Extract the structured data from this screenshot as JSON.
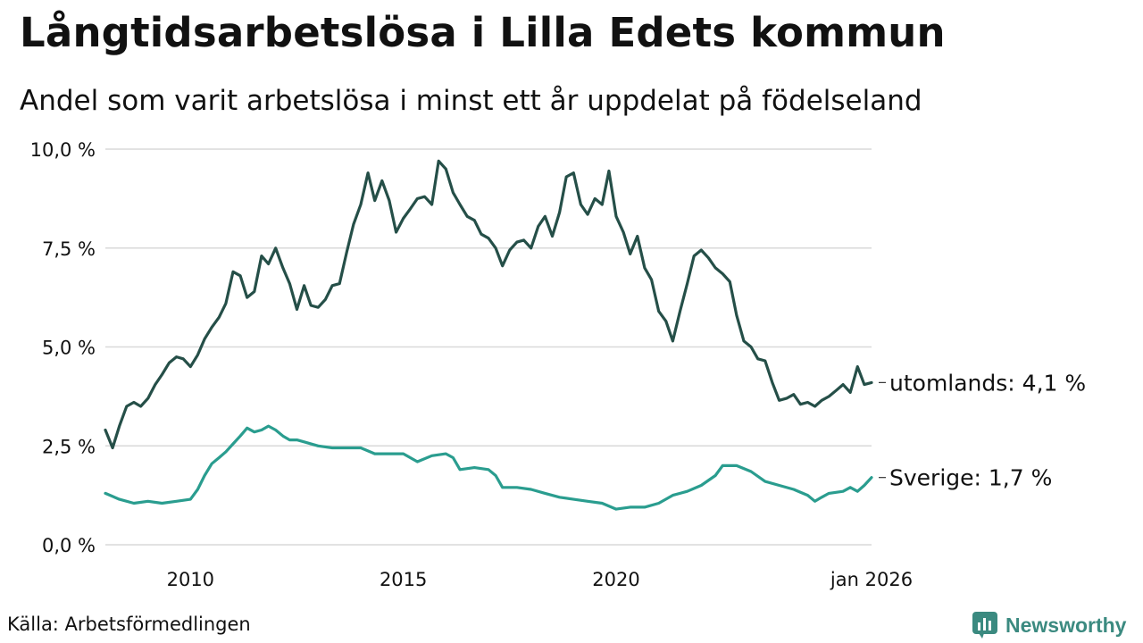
{
  "header": {
    "title": "Långtidsarbetslösa i Lilla Edets kommun",
    "subtitle": "Andel som varit arbetslösa i minst ett år uppdelat på födelseland"
  },
  "footer": {
    "source": "Källa: Arbetsförmedlingen",
    "brand": "Newsworthy"
  },
  "colors": {
    "utomlands": "#254f48",
    "sverige": "#2a9d8f",
    "grid": "#d9d9d9",
    "brand": "#3b8a80"
  },
  "chart_data": {
    "type": "line",
    "title": "Långtidsarbetslösa i Lilla Edets kommun",
    "subtitle": "Andel som varit arbetslösa i minst ett år uppdelat på födelseland",
    "xlabel": "",
    "ylabel": "",
    "x_range": [
      2008.0,
      2026.0
    ],
    "ylim": [
      0,
      10
    ],
    "grid": true,
    "y_ticks": [
      {
        "value": 0,
        "label": "0,0 %"
      },
      {
        "value": 2.5,
        "label": "2,5 %"
      },
      {
        "value": 5,
        "label": "5,0 %"
      },
      {
        "value": 7.5,
        "label": "7,5 %"
      },
      {
        "value": 10,
        "label": "10,0 %"
      }
    ],
    "x_ticks": [
      {
        "value": 2010,
        "label": "2010"
      },
      {
        "value": 2015,
        "label": "2015"
      },
      {
        "value": 2020,
        "label": "2020"
      },
      {
        "value": 2026,
        "label": "jan 2026"
      }
    ],
    "series": [
      {
        "name": "utomlands",
        "end_label": "utomlands: 4,1 %",
        "color": "#254f48",
        "points": [
          [
            2008.0,
            2.9
          ],
          [
            2008.17,
            2.45
          ],
          [
            2008.33,
            3.0
          ],
          [
            2008.5,
            3.5
          ],
          [
            2008.67,
            3.6
          ],
          [
            2008.83,
            3.5
          ],
          [
            2009.0,
            3.7
          ],
          [
            2009.17,
            4.05
          ],
          [
            2009.33,
            4.3
          ],
          [
            2009.5,
            4.6
          ],
          [
            2009.67,
            4.75
          ],
          [
            2009.83,
            4.7
          ],
          [
            2010.0,
            4.5
          ],
          [
            2010.17,
            4.8
          ],
          [
            2010.33,
            5.2
          ],
          [
            2010.5,
            5.5
          ],
          [
            2010.67,
            5.75
          ],
          [
            2010.83,
            6.1
          ],
          [
            2011.0,
            6.9
          ],
          [
            2011.17,
            6.8
          ],
          [
            2011.33,
            6.25
          ],
          [
            2011.5,
            6.4
          ],
          [
            2011.67,
            7.3
          ],
          [
            2011.83,
            7.1
          ],
          [
            2012.0,
            7.5
          ],
          [
            2012.17,
            7.0
          ],
          [
            2012.33,
            6.6
          ],
          [
            2012.5,
            5.95
          ],
          [
            2012.67,
            6.55
          ],
          [
            2012.83,
            6.05
          ],
          [
            2013.0,
            6.0
          ],
          [
            2013.17,
            6.2
          ],
          [
            2013.33,
            6.55
          ],
          [
            2013.5,
            6.6
          ],
          [
            2013.67,
            7.4
          ],
          [
            2013.83,
            8.1
          ],
          [
            2014.0,
            8.6
          ],
          [
            2014.17,
            9.4
          ],
          [
            2014.33,
            8.7
          ],
          [
            2014.5,
            9.2
          ],
          [
            2014.67,
            8.7
          ],
          [
            2014.83,
            7.9
          ],
          [
            2015.0,
            8.25
          ],
          [
            2015.17,
            8.5
          ],
          [
            2015.33,
            8.75
          ],
          [
            2015.5,
            8.8
          ],
          [
            2015.67,
            8.6
          ],
          [
            2015.83,
            9.7
          ],
          [
            2016.0,
            9.5
          ],
          [
            2016.17,
            8.9
          ],
          [
            2016.33,
            8.6
          ],
          [
            2016.5,
            8.3
          ],
          [
            2016.67,
            8.2
          ],
          [
            2016.83,
            7.85
          ],
          [
            2017.0,
            7.75
          ],
          [
            2017.17,
            7.5
          ],
          [
            2017.33,
            7.05
          ],
          [
            2017.5,
            7.45
          ],
          [
            2017.67,
            7.65
          ],
          [
            2017.83,
            7.7
          ],
          [
            2018.0,
            7.5
          ],
          [
            2018.17,
            8.05
          ],
          [
            2018.33,
            8.3
          ],
          [
            2018.5,
            7.8
          ],
          [
            2018.67,
            8.4
          ],
          [
            2018.83,
            9.3
          ],
          [
            2019.0,
            9.4
          ],
          [
            2019.17,
            8.6
          ],
          [
            2019.33,
            8.35
          ],
          [
            2019.5,
            8.75
          ],
          [
            2019.67,
            8.6
          ],
          [
            2019.83,
            9.45
          ],
          [
            2020.0,
            8.3
          ],
          [
            2020.17,
            7.9
          ],
          [
            2020.33,
            7.35
          ],
          [
            2020.5,
            7.8
          ],
          [
            2020.67,
            7.0
          ],
          [
            2020.83,
            6.7
          ],
          [
            2021.0,
            5.9
          ],
          [
            2021.17,
            5.65
          ],
          [
            2021.33,
            5.15
          ],
          [
            2021.5,
            5.9
          ],
          [
            2021.67,
            6.6
          ],
          [
            2021.83,
            7.3
          ],
          [
            2022.0,
            7.45
          ],
          [
            2022.17,
            7.25
          ],
          [
            2022.33,
            7.0
          ],
          [
            2022.5,
            6.85
          ],
          [
            2022.67,
            6.65
          ],
          [
            2022.83,
            5.8
          ],
          [
            2023.0,
            5.15
          ],
          [
            2023.17,
            5.0
          ],
          [
            2023.33,
            4.7
          ],
          [
            2023.5,
            4.65
          ],
          [
            2023.67,
            4.1
          ],
          [
            2023.83,
            3.65
          ],
          [
            2024.0,
            3.7
          ],
          [
            2024.17,
            3.8
          ],
          [
            2024.33,
            3.55
          ],
          [
            2024.5,
            3.6
          ],
          [
            2024.67,
            3.5
          ],
          [
            2024.83,
            3.65
          ],
          [
            2025.0,
            3.75
          ],
          [
            2025.17,
            3.9
          ],
          [
            2025.33,
            4.05
          ],
          [
            2025.5,
            3.85
          ],
          [
            2025.67,
            4.5
          ],
          [
            2025.83,
            4.05
          ],
          [
            2026.0,
            4.1
          ]
        ]
      },
      {
        "name": "Sverige",
        "end_label": "Sverige: 1,7 %",
        "color": "#2a9d8f",
        "points": [
          [
            2008.0,
            1.3
          ],
          [
            2008.33,
            1.15
          ],
          [
            2008.67,
            1.05
          ],
          [
            2009.0,
            1.1
          ],
          [
            2009.33,
            1.05
          ],
          [
            2009.67,
            1.1
          ],
          [
            2010.0,
            1.15
          ],
          [
            2010.17,
            1.4
          ],
          [
            2010.33,
            1.75
          ],
          [
            2010.5,
            2.05
          ],
          [
            2010.67,
            2.2
          ],
          [
            2010.83,
            2.35
          ],
          [
            2011.0,
            2.55
          ],
          [
            2011.17,
            2.75
          ],
          [
            2011.33,
            2.95
          ],
          [
            2011.5,
            2.85
          ],
          [
            2011.67,
            2.9
          ],
          [
            2011.83,
            3.0
          ],
          [
            2012.0,
            2.9
          ],
          [
            2012.17,
            2.75
          ],
          [
            2012.33,
            2.65
          ],
          [
            2012.5,
            2.65
          ],
          [
            2012.67,
            2.6
          ],
          [
            2013.0,
            2.5
          ],
          [
            2013.33,
            2.45
          ],
          [
            2013.67,
            2.45
          ],
          [
            2014.0,
            2.45
          ],
          [
            2014.33,
            2.3
          ],
          [
            2014.67,
            2.3
          ],
          [
            2015.0,
            2.3
          ],
          [
            2015.33,
            2.1
          ],
          [
            2015.67,
            2.25
          ],
          [
            2016.0,
            2.3
          ],
          [
            2016.17,
            2.2
          ],
          [
            2016.33,
            1.9
          ],
          [
            2016.67,
            1.95
          ],
          [
            2017.0,
            1.9
          ],
          [
            2017.17,
            1.75
          ],
          [
            2017.33,
            1.45
          ],
          [
            2017.67,
            1.45
          ],
          [
            2018.0,
            1.4
          ],
          [
            2018.33,
            1.3
          ],
          [
            2018.67,
            1.2
          ],
          [
            2019.0,
            1.15
          ],
          [
            2019.33,
            1.1
          ],
          [
            2019.67,
            1.05
          ],
          [
            2020.0,
            0.9
          ],
          [
            2020.33,
            0.95
          ],
          [
            2020.67,
            0.95
          ],
          [
            2021.0,
            1.05
          ],
          [
            2021.33,
            1.25
          ],
          [
            2021.67,
            1.35
          ],
          [
            2022.0,
            1.5
          ],
          [
            2022.33,
            1.75
          ],
          [
            2022.5,
            2.0
          ],
          [
            2022.83,
            2.0
          ],
          [
            2023.17,
            1.85
          ],
          [
            2023.5,
            1.6
          ],
          [
            2023.83,
            1.5
          ],
          [
            2024.17,
            1.4
          ],
          [
            2024.5,
            1.25
          ],
          [
            2024.67,
            1.1
          ],
          [
            2024.83,
            1.2
          ],
          [
            2025.0,
            1.3
          ],
          [
            2025.33,
            1.35
          ],
          [
            2025.5,
            1.45
          ],
          [
            2025.67,
            1.35
          ],
          [
            2025.83,
            1.5
          ],
          [
            2026.0,
            1.7
          ]
        ]
      }
    ]
  }
}
